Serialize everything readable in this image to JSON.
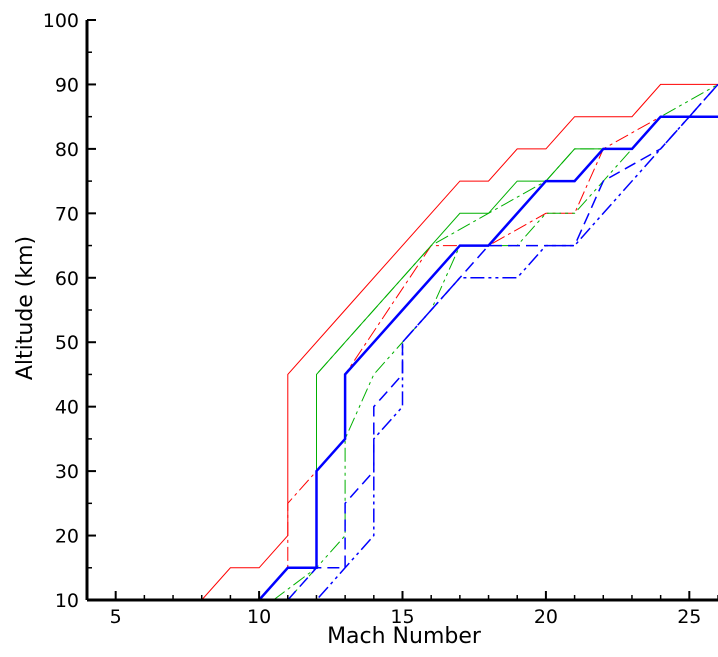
{
  "chart_data": {
    "type": "line",
    "xlabel": "Mach Number",
    "ylabel": "Altitude (km)",
    "xlim": [
      4,
      26
    ],
    "ylim": [
      10,
      100
    ],
    "xticks": [
      5,
      10,
      15,
      20,
      25
    ],
    "yticks": [
      10,
      20,
      30,
      40,
      50,
      60,
      70,
      80,
      90,
      100
    ],
    "grid": false,
    "legend": "none",
    "series": [
      {
        "color": "#ff0000",
        "style": "solid",
        "width": 1,
        "points": [
          [
            8,
            10
          ],
          [
            9,
            15
          ],
          [
            10,
            15
          ],
          [
            11,
            20
          ],
          [
            11,
            45
          ],
          [
            13,
            55
          ],
          [
            16,
            70
          ],
          [
            17,
            75
          ],
          [
            18,
            75
          ],
          [
            19,
            80
          ],
          [
            20,
            80
          ],
          [
            21,
            85
          ],
          [
            23,
            85
          ],
          [
            24,
            90
          ],
          [
            26,
            90
          ]
        ]
      },
      {
        "color": "#ff0000",
        "style": "dashdot",
        "width": 1,
        "points": [
          [
            10,
            10
          ],
          [
            11,
            15
          ],
          [
            11,
            25
          ],
          [
            12,
            30
          ],
          [
            13,
            35
          ],
          [
            13,
            45
          ],
          [
            16,
            65
          ],
          [
            18,
            65
          ],
          [
            20,
            70
          ],
          [
            21,
            70
          ],
          [
            22,
            80
          ],
          [
            24,
            85
          ],
          [
            26,
            85
          ]
        ]
      },
      {
        "color": "#00b000",
        "style": "solid",
        "width": 1,
        "points": [
          [
            11,
            15
          ],
          [
            12,
            15
          ],
          [
            12,
            45
          ],
          [
            13,
            50
          ],
          [
            16,
            65
          ],
          [
            17,
            70
          ],
          [
            18,
            70
          ],
          [
            19,
            75
          ],
          [
            20,
            75
          ],
          [
            21,
            80
          ],
          [
            23,
            80
          ],
          [
            24,
            85
          ],
          [
            26,
            85
          ]
        ]
      },
      {
        "color": "#00b000",
        "style": "dashdot",
        "width": 1,
        "points": [
          [
            10.5,
            10
          ],
          [
            12,
            15
          ],
          [
            12,
            45
          ],
          [
            14,
            55
          ],
          [
            16,
            65
          ],
          [
            18,
            70
          ],
          [
            20,
            75
          ],
          [
            21,
            80
          ],
          [
            23,
            80
          ],
          [
            24,
            85
          ],
          [
            26,
            85
          ]
        ]
      },
      {
        "color": "#00b000",
        "style": "dashdotdot",
        "width": 1,
        "points": [
          [
            11,
            10
          ],
          [
            12,
            15
          ],
          [
            13,
            20
          ],
          [
            13,
            35
          ],
          [
            14,
            45
          ],
          [
            16,
            55
          ],
          [
            17,
            65
          ],
          [
            19,
            65
          ],
          [
            20,
            70
          ],
          [
            21,
            70
          ],
          [
            23,
            80
          ],
          [
            24,
            85
          ],
          [
            26,
            90
          ]
        ]
      },
      {
        "color": "#0000ff",
        "style": "solid",
        "width": 2.5,
        "points": [
          [
            10,
            10
          ],
          [
            11,
            15
          ],
          [
            12,
            15
          ],
          [
            12,
            30
          ],
          [
            13,
            35
          ],
          [
            13,
            45
          ],
          [
            15,
            55
          ],
          [
            17,
            65
          ],
          [
            18,
            65
          ],
          [
            20,
            75
          ],
          [
            21,
            75
          ],
          [
            22,
            80
          ],
          [
            23,
            80
          ],
          [
            24,
            85
          ],
          [
            26,
            85
          ]
        ]
      },
      {
        "color": "#0000ff",
        "style": "dashed",
        "width": 1.5,
        "points": [
          [
            11,
            10
          ],
          [
            12,
            15
          ],
          [
            13,
            15
          ],
          [
            13,
            25
          ],
          [
            14,
            30
          ],
          [
            14,
            40
          ],
          [
            15,
            45
          ],
          [
            15,
            50
          ],
          [
            17,
            60
          ],
          [
            18,
            65
          ],
          [
            21,
            65
          ],
          [
            22,
            75
          ],
          [
            24,
            80
          ],
          [
            25,
            85
          ],
          [
            26,
            90
          ]
        ]
      },
      {
        "color": "#0000ff",
        "style": "dashdotdot",
        "width": 1.5,
        "points": [
          [
            11,
            10
          ],
          [
            12,
            10
          ],
          [
            13,
            15
          ],
          [
            14,
            20
          ],
          [
            14,
            35
          ],
          [
            15,
            40
          ],
          [
            15,
            50
          ],
          [
            17,
            60
          ],
          [
            18,
            60
          ],
          [
            19,
            60
          ],
          [
            20,
            65
          ],
          [
            21,
            65
          ],
          [
            22,
            70
          ],
          [
            24,
            80
          ],
          [
            25,
            85
          ],
          [
            26,
            90
          ]
        ]
      }
    ]
  }
}
